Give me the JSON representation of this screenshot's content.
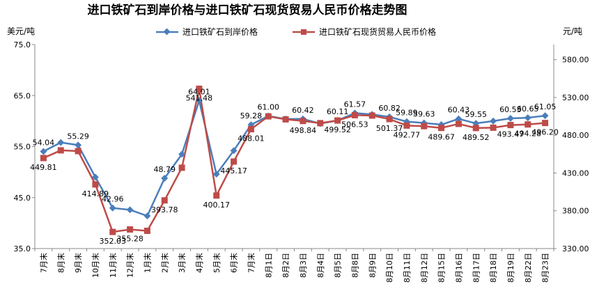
{
  "chart_data": {
    "type": "line",
    "title": "进口铁矿石到岸价格与进口铁矿石现货贸易人民币价格走势图",
    "ylabel": "美元/吨",
    "y2label": "元/吨",
    "ylim": [
      35,
      75
    ],
    "y_ticks": [
      "35.0",
      "45.0",
      "55.0",
      "65.0",
      "75.0"
    ],
    "y2lim": [
      330,
      600
    ],
    "y2_ticks": [
      "330.00",
      "380.00",
      "430.00",
      "480.00",
      "530.00",
      "580.00"
    ],
    "grid": false,
    "legend": "top-center",
    "categories": [
      "7月末",
      "8月末",
      "9月末",
      "10月末",
      "11月末",
      "12月末",
      "1月末",
      "2月末",
      "3月末",
      "4月末",
      "5月末",
      "6月末",
      "7月末",
      "8月1日",
      "8月2日",
      "8月3日",
      "8月4日",
      "8月5日",
      "8月8日",
      "8月9日",
      "8月10日",
      "8月11日",
      "8月12日",
      "8月15日",
      "8月16日",
      "8月17日",
      "8月18日",
      "8月19日",
      "8月22日",
      "8月23日"
    ],
    "series": [
      {
        "name": "进口铁矿石到岸价格",
        "axis": "left",
        "color": "#4a7ebb",
        "marker": "diamond",
        "values": [
          54.04,
          55.8,
          55.29,
          49.0,
          42.96,
          42.6,
          41.4,
          48.79,
          53.5,
          64.01,
          49.6,
          54.2,
          59.28,
          61.0,
          60.4,
          60.42,
          59.5,
          60.11,
          61.57,
          61.3,
          60.82,
          59.89,
          59.63,
          59.3,
          60.43,
          59.55,
          60.0,
          60.53,
          60.65,
          61.05
        ],
        "labels": [
          "54.04",
          "",
          "55.29",
          "",
          "42.96",
          "",
          "",
          "48.79",
          "",
          "64.01",
          "",
          "",
          "59.28",
          "61.00",
          "",
          "60.42",
          "",
          "60.11",
          "61.57",
          "",
          "60.82",
          "59.89",
          "59.63",
          "",
          "60.43",
          "59.55",
          "",
          "60.53",
          "60.65",
          "61.05"
        ]
      },
      {
        "name": "进口铁矿石现货贸易人民币价格",
        "axis": "right",
        "color": "#be4b48",
        "marker": "square",
        "values": [
          449.81,
          460.0,
          459.0,
          414.89,
          352.03,
          355.28,
          353.5,
          393.78,
          437.0,
          541.48,
          400.17,
          445.17,
          488.01,
          505.0,
          501.0,
          498.84,
          496.0,
          499.52,
          506.53,
          506.0,
          501.37,
          492.77,
          492.0,
          489.67,
          495.0,
          489.52,
          490.0,
          493.47,
          494.28,
          496.2
        ],
        "labels": [
          "449.81",
          "",
          "",
          "414.89",
          "352.03",
          "355.28",
          "",
          "393.78",
          "",
          "541.48",
          "400.17",
          "445.17",
          "488.01",
          "",
          "",
          "498.84",
          "",
          "499.52",
          "506.53",
          "",
          "501.37",
          "492.77",
          "",
          "489.67",
          "",
          "489.52",
          "",
          "493.47",
          "494.28",
          "496.20"
        ]
      }
    ]
  }
}
